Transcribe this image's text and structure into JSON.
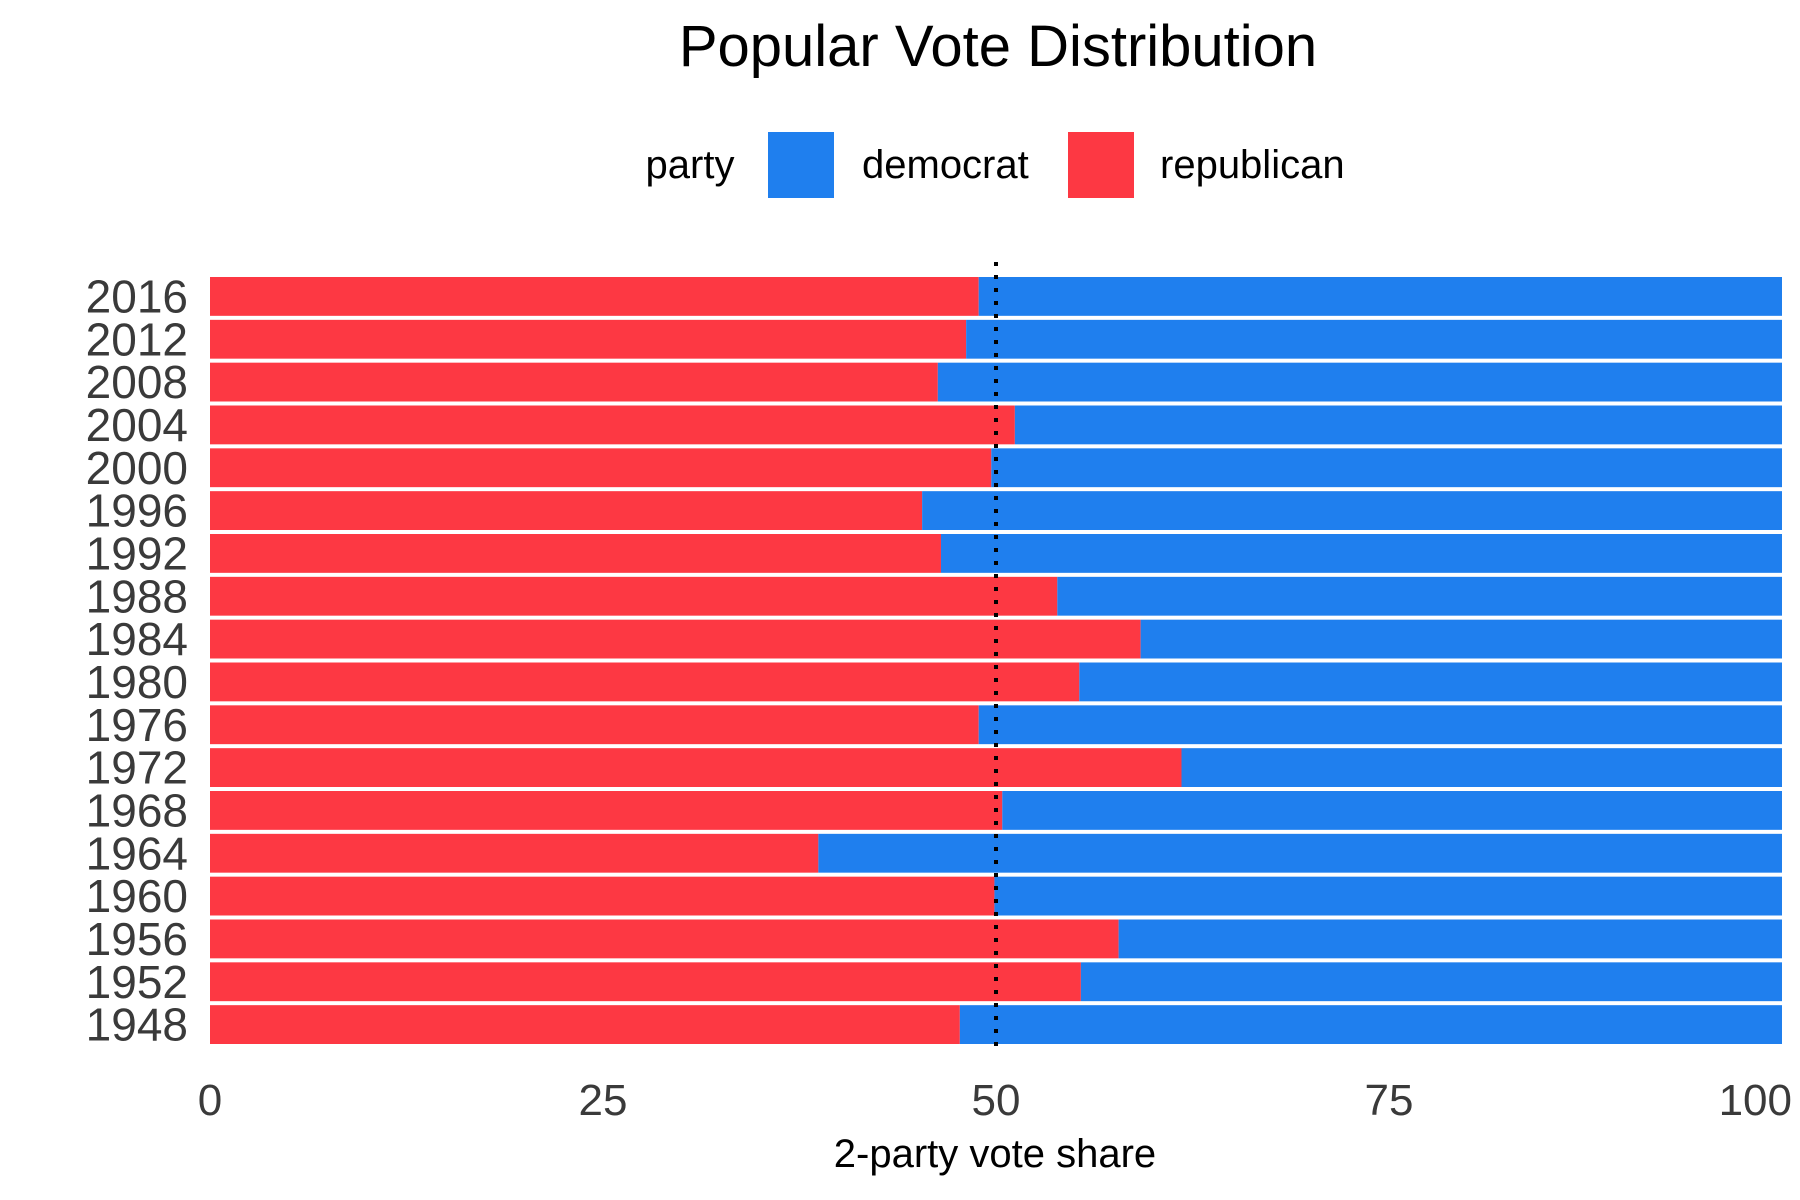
{
  "chart_data": {
    "type": "bar",
    "orientation": "horizontal",
    "stacked": true,
    "title": "Popular Vote Distribution",
    "xlabel": "2-party vote share",
    "ylabel": "",
    "xlim": [
      0,
      100
    ],
    "xticks": [
      "0",
      "25",
      "50",
      "75",
      "100"
    ],
    "reference_line": {
      "x": 50,
      "style": "dotted",
      "color": "#000000"
    },
    "legend": {
      "title": "party",
      "placement": "top",
      "entries": [
        {
          "name": "democrat",
          "color": "#1F7FEE"
        },
        {
          "name": "republican",
          "color": "#FD3843"
        }
      ]
    },
    "grid": false,
    "categories": [
      "2016",
      "2012",
      "2008",
      "2004",
      "2000",
      "1996",
      "1992",
      "1988",
      "1984",
      "1980",
      "1976",
      "1972",
      "1968",
      "1964",
      "1960",
      "1956",
      "1952",
      "1948"
    ],
    "series": [
      {
        "name": "republican",
        "color": "#FD3843",
        "values": [
          48.9,
          48.1,
          46.3,
          51.2,
          49.7,
          45.3,
          46.5,
          53.9,
          59.2,
          55.3,
          48.9,
          61.8,
          50.4,
          38.7,
          49.9,
          57.8,
          55.4,
          47.7
        ]
      },
      {
        "name": "democrat",
        "color": "#1F7FEE",
        "values": [
          51.1,
          51.9,
          53.7,
          48.8,
          50.3,
          54.7,
          53.5,
          46.1,
          40.8,
          44.7,
          51.1,
          38.2,
          49.6,
          61.3,
          50.1,
          42.2,
          44.6,
          52.3
        ]
      }
    ]
  }
}
